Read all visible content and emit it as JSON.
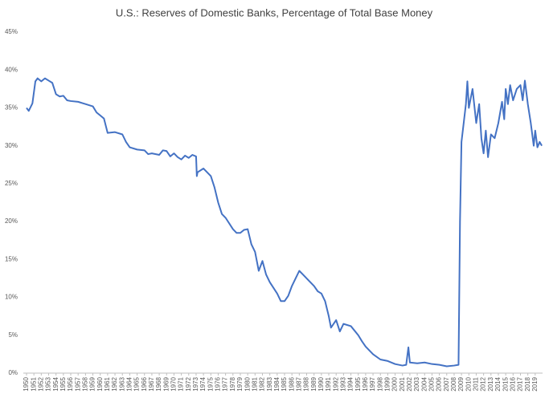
{
  "chart_data": {
    "type": "line",
    "title": "U.S.: Reserves of Domestic Banks, Percentage of Total Base Money",
    "color": "#4472c4",
    "grid": false,
    "xlim": [
      1950,
      2020
    ],
    "xticks": [
      1950,
      1951,
      1952,
      1953,
      1954,
      1955,
      1956,
      1957,
      1958,
      1959,
      1960,
      1961,
      1962,
      1963,
      1964,
      1965,
      1966,
      1967,
      1968,
      1969,
      1970,
      1971,
      1972,
      1973,
      1974,
      1975,
      1976,
      1977,
      1978,
      1979,
      1980,
      1981,
      1982,
      1983,
      1984,
      1985,
      1986,
      1987,
      1988,
      1989,
      1990,
      1991,
      1992,
      1993,
      1994,
      1995,
      1996,
      1997,
      1998,
      1999,
      2000,
      2001,
      2002,
      2003,
      2004,
      2005,
      2006,
      2007,
      2008,
      2009,
      2010,
      2011,
      2012,
      2013,
      2014,
      2015,
      2016,
      2017,
      2018,
      2019
    ],
    "ylim": [
      0,
      45
    ],
    "yticks": [
      {
        "value": 0,
        "label": "0%"
      },
      {
        "value": 5,
        "label": "5%"
      },
      {
        "value": 10,
        "label": "10%"
      },
      {
        "value": 15,
        "label": "15%"
      },
      {
        "value": 20,
        "label": "20%"
      },
      {
        "value": 25,
        "label": "25%"
      },
      {
        "value": 30,
        "label": "30%"
      },
      {
        "value": 35,
        "label": "35%"
      },
      {
        "value": 40,
        "label": "40%"
      },
      {
        "value": 45,
        "label": "45%"
      }
    ],
    "x": [
      1950,
      1950.3,
      1950.8,
      1951.2,
      1951.5,
      1952,
      1952.5,
      1953,
      1953.5,
      1954,
      1954.5,
      1955,
      1955.5,
      1956,
      1957,
      1958,
      1959,
      1959.5,
      1960,
      1960.5,
      1961,
      1962,
      1963,
      1963.5,
      1964,
      1965,
      1966,
      1966.5,
      1967,
      1968,
      1968.5,
      1969,
      1969.5,
      1970,
      1970.5,
      1971,
      1971.5,
      1972,
      1972.5,
      1973,
      1973.1,
      1973.2,
      1974,
      1975,
      1975.5,
      1976,
      1976.5,
      1977,
      1978,
      1978.5,
      1979,
      1979.5,
      1980,
      1980.5,
      1981,
      1981.5,
      1982,
      1982.5,
      1983,
      1984,
      1984.5,
      1985,
      1985.5,
      1986,
      1986.5,
      1987,
      1987.5,
      1988,
      1989,
      1989.5,
      1990,
      1990.5,
      1991,
      1991.3,
      1992,
      1992.5,
      1993,
      1994,
      1995,
      1995.5,
      1996,
      1997,
      1998,
      1999,
      2000,
      2001,
      2001.5,
      2001.8,
      2002,
      2003,
      2004,
      2005,
      2006,
      2007,
      2008,
      2008.6,
      2008.8,
      2009,
      2009.3,
      2009.6,
      2009.8,
      2010,
      2010.5,
      2011,
      2011.4,
      2011.7,
      2012,
      2012.3,
      2012.6,
      2013,
      2013.5,
      2014,
      2014.5,
      2014.8,
      2015,
      2015.3,
      2015.6,
      2016,
      2016.5,
      2017,
      2017.3,
      2017.6,
      2018,
      2018.4,
      2018.8,
      2019,
      2019.3,
      2019.6,
      2019.9
    ],
    "values": [
      35.0,
      34.6,
      35.6,
      38.5,
      38.9,
      38.5,
      38.9,
      38.6,
      38.3,
      36.8,
      36.5,
      36.6,
      36.0,
      35.9,
      35.8,
      35.5,
      35.2,
      34.4,
      34.0,
      33.6,
      31.7,
      31.8,
      31.5,
      30.5,
      29.8,
      29.5,
      29.4,
      28.9,
      29.0,
      28.8,
      29.4,
      29.3,
      28.6,
      29.0,
      28.5,
      28.2,
      28.7,
      28.4,
      28.8,
      28.6,
      26.0,
      26.5,
      27.0,
      26.0,
      24.5,
      22.5,
      21.0,
      20.5,
      19.0,
      18.5,
      18.5,
      18.9,
      19.0,
      17.0,
      16.0,
      13.5,
      14.8,
      13.0,
      12.0,
      10.5,
      9.5,
      9.5,
      10.2,
      11.5,
      12.5,
      13.5,
      13.0,
      12.5,
      11.5,
      10.8,
      10.5,
      9.5,
      7.5,
      6.0,
      7.0,
      5.5,
      6.5,
      6.2,
      5.0,
      4.2,
      3.5,
      2.5,
      1.8,
      1.6,
      1.2,
      1.0,
      1.1,
      3.4,
      1.4,
      1.3,
      1.4,
      1.2,
      1.1,
      0.9,
      1.0,
      1.1,
      20.0,
      30.5,
      33.0,
      35.5,
      38.5,
      35.0,
      37.5,
      33.0,
      35.5,
      31.0,
      29.0,
      32.0,
      28.5,
      31.5,
      31.0,
      33.0,
      35.8,
      33.5,
      37.5,
      35.5,
      38.0,
      36.0,
      37.5,
      38.0,
      36.0,
      38.6,
      35.5,
      33.0,
      30.0,
      32.0,
      29.8,
      30.5,
      30.0
    ]
  }
}
